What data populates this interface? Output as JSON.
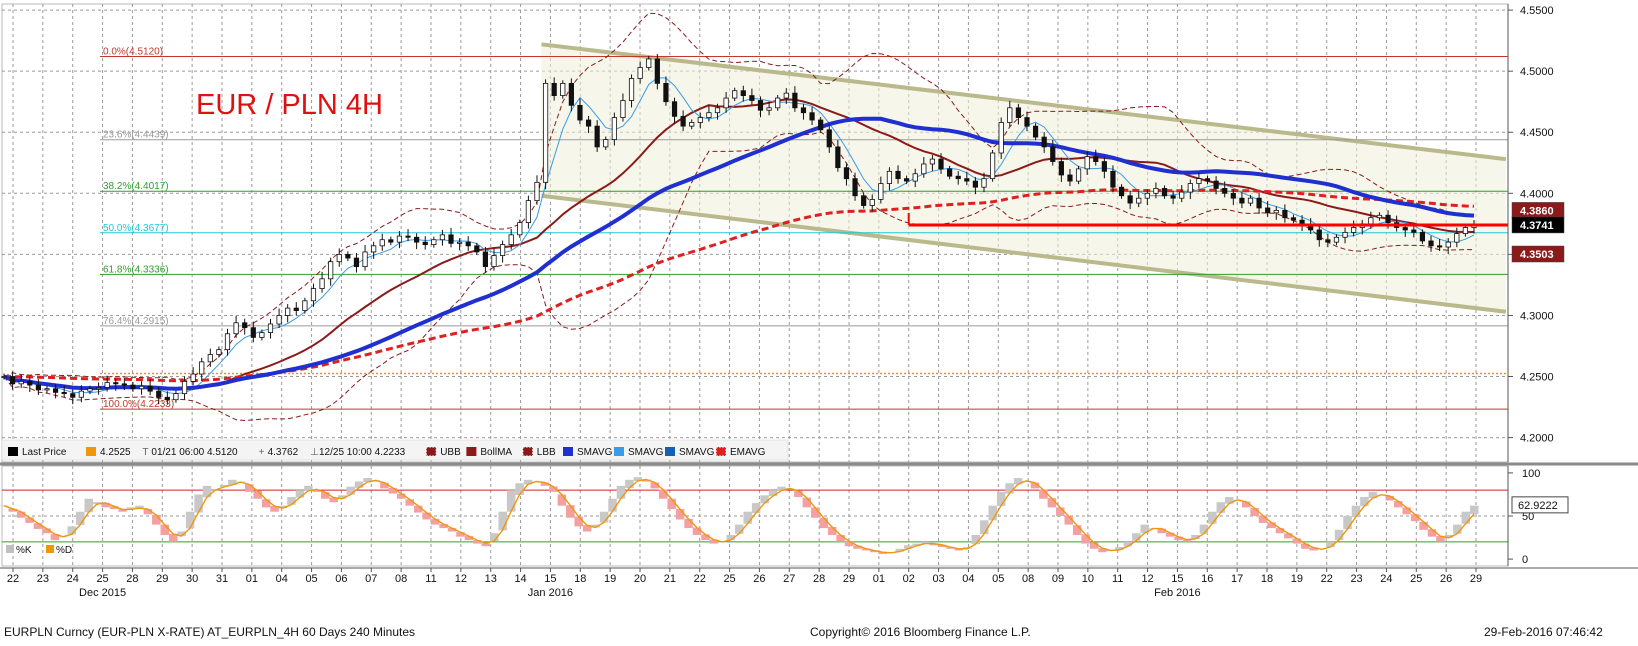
{
  "chart_data": {
    "type": "candlestick",
    "title": "EUR / PLN 4H",
    "instrument": "EURPLN Curncy (EUR-PLN X-RATE) AT_EURPLN_4H 60 Days 240 Minutes",
    "copyright": "Copyright© 2016 Bloomberg Finance L.P.",
    "timestamp": "29-Feb-2016 07:46:42",
    "y_axis": {
      "ticks": [
        "4.5500",
        "4.5000",
        "4.4500",
        "4.4000",
        "4.3500",
        "4.3000",
        "4.2500",
        "4.2000"
      ],
      "ylim": [
        4.18,
        4.555
      ]
    },
    "x_axis": {
      "day_labels": [
        "22",
        "23",
        "24",
        "25",
        "28",
        "29",
        "30",
        "31",
        "01",
        "04",
        "05",
        "06",
        "07",
        "08",
        "11",
        "12",
        "13",
        "14",
        "15",
        "18",
        "19",
        "20",
        "21",
        "22",
        "25",
        "26",
        "27",
        "28",
        "29",
        "01",
        "02",
        "03",
        "04",
        "05",
        "08",
        "09",
        "10",
        "11",
        "12",
        "15",
        "16",
        "17",
        "18",
        "19",
        "22",
        "23",
        "24",
        "25",
        "26",
        "29"
      ],
      "month_labels": [
        {
          "label": "Dec 2015",
          "at_day_index": 3
        },
        {
          "label": "Jan 2016",
          "at_day_index": 18
        },
        {
          "label": "Feb 2016",
          "at_day_index": 39
        }
      ]
    },
    "close_series": [
      4.25,
      4.244,
      4.246,
      4.243,
      4.239,
      4.24,
      4.237,
      4.236,
      4.233,
      4.238,
      4.24,
      4.241,
      4.245,
      4.244,
      4.243,
      4.24,
      4.242,
      4.238,
      4.233,
      4.231,
      4.236,
      4.246,
      4.252,
      4.262,
      4.268,
      4.272,
      4.285,
      4.294,
      4.29,
      4.282,
      4.286,
      4.293,
      4.3,
      4.306,
      4.304,
      4.312,
      4.322,
      4.33,
      4.344,
      4.35,
      4.347,
      4.34,
      4.352,
      4.357,
      4.362,
      4.36,
      4.365,
      4.364,
      4.36,
      4.358,
      4.362,
      4.366,
      4.359,
      4.36,
      4.357,
      4.352,
      4.34,
      4.349,
      4.358,
      4.366,
      4.376,
      4.394,
      4.409,
      4.49,
      4.48,
      4.49,
      4.472,
      4.46,
      4.455,
      4.438,
      4.444,
      4.462,
      4.476,
      4.494,
      4.503,
      4.51,
      4.49,
      4.475,
      4.463,
      4.455,
      4.458,
      4.462,
      4.466,
      4.47,
      4.478,
      4.484,
      4.48,
      4.476,
      4.468,
      4.47,
      4.478,
      4.482,
      4.47,
      4.466,
      4.46,
      4.452,
      4.438,
      4.421,
      4.412,
      4.398,
      4.39,
      4.395,
      4.408,
      4.418,
      4.412,
      4.41,
      4.416,
      4.424,
      4.428,
      4.42,
      4.414,
      4.412,
      4.41,
      4.405,
      4.412,
      4.433,
      4.458,
      4.47,
      4.462,
      4.455,
      4.446,
      4.438,
      4.426,
      4.415,
      4.41,
      4.42,
      4.43,
      4.426,
      4.418,
      4.405,
      4.398,
      4.392,
      4.396,
      4.4,
      4.404,
      4.398,
      4.396,
      4.401,
      4.408,
      4.412,
      4.41,
      4.404,
      4.4,
      4.396,
      4.392,
      4.396,
      4.388,
      4.384,
      4.386,
      4.38,
      4.378,
      4.374,
      4.37,
      4.362,
      4.36,
      4.364,
      4.368,
      4.372,
      4.375,
      4.38,
      4.382,
      4.376,
      4.372,
      4.37,
      4.368,
      4.361,
      4.357,
      4.356,
      4.36,
      4.367,
      4.372,
      4.374
    ],
    "series": [
      {
        "name": "Last Price",
        "color": "#000000",
        "value": "4.2525",
        "legend_color": "#f0960a"
      },
      {
        "name": "UBB",
        "color": "#8b1a1a"
      },
      {
        "name": "BollMA",
        "color": "#8b1a1a"
      },
      {
        "name": "LBB",
        "color": "#8b1a1a"
      },
      {
        "name": "SMAVG",
        "color": "#1f2fd0"
      },
      {
        "name": "SMAVG",
        "color": "#3a9be8"
      },
      {
        "name": "SMAVG",
        "color": "#1560b0"
      },
      {
        "name": "EMAVG",
        "color": "#e02020"
      }
    ],
    "legend_items": [
      {
        "swatch": "#000000",
        "label": "Last Price"
      },
      {
        "swatch": "#f0960a",
        "label": "4.2525"
      },
      {
        "swatch": "none",
        "label": "01/21 06:00 4.5120",
        "mark": "T"
      },
      {
        "swatch": "none",
        "label": "4.3762",
        "mark": "+"
      },
      {
        "swatch": "none",
        "label": "12/25 10:00 4.2233",
        "mark": "⊥"
      },
      {
        "swatch": "#8b1a1a",
        "label": "UBB",
        "dashed": true
      },
      {
        "swatch": "#8b1a1a",
        "label": "BollMA"
      },
      {
        "swatch": "#8b1a1a",
        "label": "LBB",
        "dashed": true
      },
      {
        "swatch": "#1f2fd0",
        "label": "SMAVG"
      },
      {
        "swatch": "#3a9be8",
        "label": "SMAVG"
      },
      {
        "swatch": "#1560b0",
        "label": "SMAVG"
      },
      {
        "swatch": "#e02020",
        "label": "EMAVG",
        "dashed": true
      }
    ],
    "fibonacci": [
      {
        "label": "0.0%(4.5120)",
        "value": 4.512,
        "color": "#c0392b"
      },
      {
        "label": "23.6%(4.4439)",
        "value": 4.4439,
        "color": "#9a9a9a"
      },
      {
        "label": "38.2%(4.4017)",
        "value": 4.4017,
        "color": "#2ca02c"
      },
      {
        "label": "50.0%(4.3677)",
        "value": 4.3677,
        "color": "#20c8d8"
      },
      {
        "label": "61.8%(4.3336)",
        "value": 4.3336,
        "color": "#2ca02c"
      },
      {
        "label": "76.4%(4.2915)",
        "value": 4.2915,
        "color": "#9a9a9a"
      },
      {
        "label": "100.0%(4.2233)",
        "value": 4.2233,
        "color": "#c0392b"
      }
    ],
    "extra_levels": [
      {
        "value": 4.2525,
        "color": "#f0960a",
        "style": "dotted"
      },
      {
        "value": 4.3741,
        "color": "#ff0000",
        "style": "solid-support",
        "from_day_index": 30
      }
    ],
    "channel": {
      "upper": [
        {
          "day": 17.7,
          "y": 4.522
        },
        {
          "day": 50,
          "y": 4.428
        }
      ],
      "lower": [
        {
          "day": 17.7,
          "y": 4.398
        },
        {
          "day": 50,
          "y": 4.303
        }
      ]
    },
    "price_labels": [
      {
        "value": "4.3860",
        "color": "#8b1a1a"
      },
      {
        "value": "4.3741",
        "color": "#000000"
      },
      {
        "value": "4.3503",
        "color": "#8b1a1a"
      }
    ],
    "oscillator": {
      "type": "stochastic",
      "ticks": [
        "100",
        "50",
        "0"
      ],
      "ylim": [
        -8,
        108
      ],
      "overbought": 80,
      "oversold": 20,
      "current_value": "62.9222",
      "legend": [
        {
          "label": "%K",
          "color": "#bfbfbf"
        },
        {
          "label": "%D",
          "color": "#f0960a"
        }
      ],
      "k_series": [
        62,
        55,
        48,
        42,
        35,
        30,
        22,
        26,
        38,
        55,
        70,
        66,
        60,
        58,
        55,
        60,
        62,
        52,
        40,
        28,
        20,
        32,
        55,
        75,
        85,
        80,
        86,
        92,
        90,
        78,
        70,
        60,
        55,
        62,
        72,
        80,
        85,
        78,
        70,
        66,
        74,
        84,
        90,
        94,
        90,
        82,
        76,
        70,
        62,
        54,
        46,
        40,
        36,
        32,
        26,
        22,
        18,
        15,
        30,
        55,
        80,
        88,
        92,
        90,
        85,
        78,
        62,
        48,
        38,
        32,
        40,
        55,
        70,
        85,
        92,
        95,
        90,
        82,
        70,
        58,
        46,
        36,
        28,
        22,
        18,
        20,
        28,
        40,
        55,
        65,
        74,
        80,
        84,
        82,
        72,
        60,
        48,
        36,
        28,
        20,
        15,
        12,
        10,
        8,
        6,
        8,
        12,
        16,
        18,
        20,
        16,
        14,
        12,
        10,
        14,
        28,
        45,
        62,
        78,
        88,
        94,
        90,
        82,
        70,
        60,
        50,
        40,
        28,
        18,
        12,
        8,
        10,
        14,
        20,
        30,
        40,
        36,
        30,
        26,
        22,
        20,
        28,
        40,
        55,
        66,
        72,
        68,
        60,
        50,
        42,
        36,
        30,
        24,
        18,
        12,
        10,
        12,
        20,
        34,
        50,
        62,
        72,
        78,
        74,
        68,
        60,
        52,
        44,
        34,
        26,
        20,
        28,
        40,
        55,
        62
      ]
    }
  }
}
